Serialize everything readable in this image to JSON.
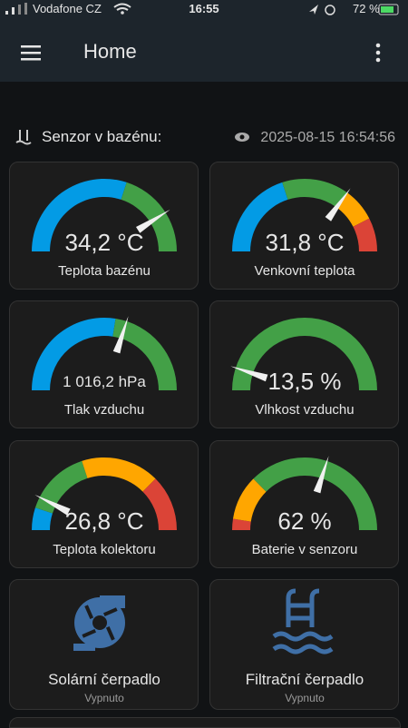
{
  "status_bar": {
    "carrier": "Vodafone CZ",
    "time": "16:55",
    "battery": "72 %"
  },
  "header": {
    "title": "Home"
  },
  "section": {
    "title": "Senzor v bazénu:",
    "timestamp": "2025-08-15 16:54:56"
  },
  "gauges": [
    {
      "value": "34,2 °C",
      "label": "Teplota bazénu"
    },
    {
      "value": "31,8 °C",
      "label": "Venkovní teplota"
    },
    {
      "value": "1 016,2 hPa",
      "label": "Tlak vzduchu"
    },
    {
      "value": "13,5 %",
      "label": "Vlhkost vzduchu"
    },
    {
      "value": "26,8 °C",
      "label": "Teplota kolektoru"
    },
    {
      "value": "62 %",
      "label": "Baterie v senzoru"
    }
  ],
  "switches": [
    {
      "label": "Solární čerpadlo",
      "state": "Vypnuto"
    },
    {
      "label": "Filtrační čerpadlo",
      "state": "Vypnuto"
    }
  ]
}
